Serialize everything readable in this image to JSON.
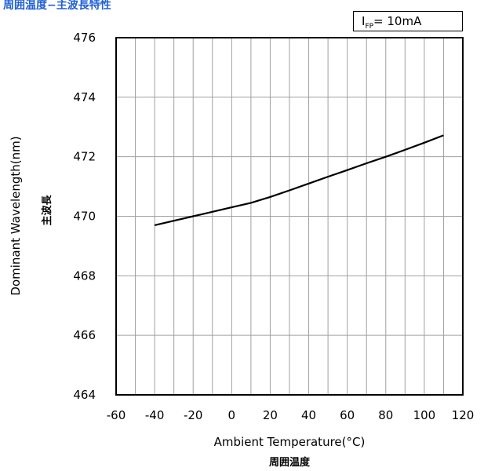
{
  "title": "周囲温度−主波長特性",
  "condition": {
    "main": "I",
    "sub": "FP",
    "rest": "= 10mA"
  },
  "colors": {
    "title": "#1f5fd6",
    "line": "#000000",
    "grid": "#a0a0a0"
  },
  "chart_data": {
    "type": "line",
    "title": "周囲温度−主波長特性",
    "xlabel": "Ambient Temperature(°C)",
    "xlabel_jp": "周囲温度",
    "ylabel": "Dominant Wavelength(nm)",
    "ylabel_jp": "主波長",
    "xlim": [
      -60,
      120
    ],
    "ylim": [
      464,
      476
    ],
    "xticks": [
      -60,
      -40,
      -20,
      0,
      20,
      40,
      60,
      80,
      100,
      120
    ],
    "yticks": [
      464,
      466,
      468,
      470,
      472,
      474,
      476
    ],
    "x_minor_step": 10,
    "grid": true,
    "series": [
      {
        "x": [
          -40,
          -30,
          -20,
          -10,
          0,
          10,
          20,
          30,
          40,
          50,
          60,
          70,
          80,
          90,
          100,
          110
        ],
        "values": [
          469.7,
          469.85,
          470.0,
          470.15,
          470.3,
          470.45,
          470.65,
          470.87,
          471.1,
          471.33,
          471.55,
          471.78,
          472.0,
          472.23,
          472.47,
          472.72
        ]
      }
    ]
  }
}
